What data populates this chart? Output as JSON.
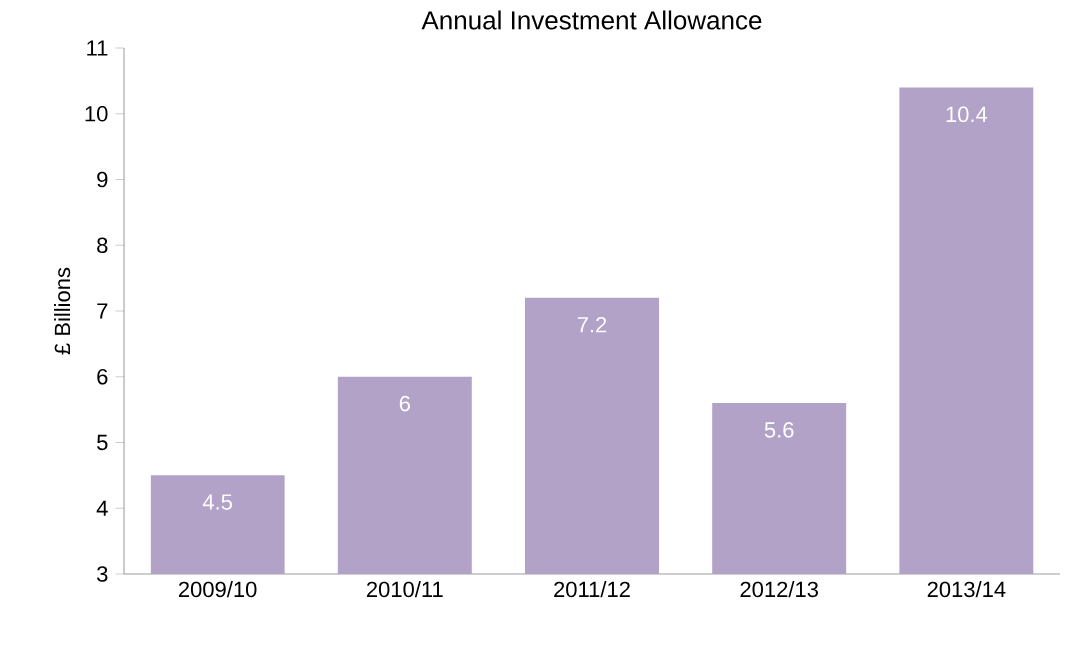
{
  "chart_data": {
    "type": "bar",
    "title": "Annual Investment Allowance",
    "ylabel": "£ Billions",
    "categories": [
      "2009/10",
      "2010/11",
      "2011/12",
      "2012/13",
      "2013/14"
    ],
    "values": [
      4.5,
      6,
      7.2,
      5.6,
      10.4
    ],
    "color": "#b3a2c7",
    "ylim": [
      3,
      11
    ],
    "yticks": [
      3,
      4,
      5,
      6,
      7,
      8,
      9,
      10,
      11
    ],
    "grid": false,
    "data_labels": true
  }
}
